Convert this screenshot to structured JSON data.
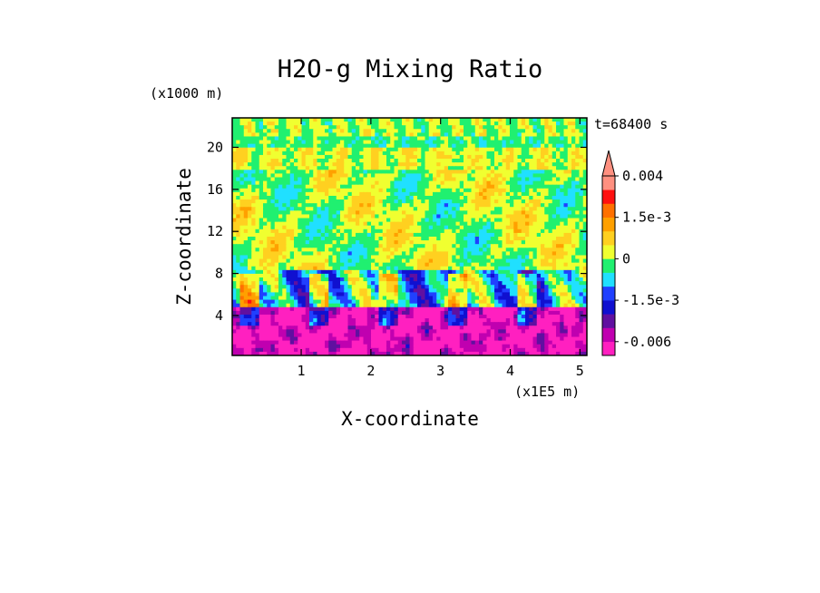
{
  "chart_data": {
    "type": "heatmap",
    "title": "H2O-g Mixing Ratio",
    "xlabel": "X-coordinate",
    "ylabel": "Z-coordinate",
    "x_unit": "(x1E5 m)",
    "y_unit": "(x1000 m)",
    "time_label": "t=68400 s",
    "xlim": [
      0.01,
      5.1
    ],
    "ylim": [
      0.2,
      22.8
    ],
    "x_ticks": [
      1,
      2,
      3,
      4,
      5
    ],
    "y_ticks": [
      4,
      8,
      12,
      16,
      20
    ],
    "x_tick_labels": [
      "1",
      "2",
      "3",
      "4",
      "5"
    ],
    "y_tick_labels": [
      "4",
      "8",
      "12",
      "16",
      "20"
    ],
    "colorbar": {
      "levels": [
        -0.009,
        -0.006,
        -0.003,
        -0.002,
        -0.0015,
        -0.001,
        -0.0005,
        0,
        0.0005,
        0.001,
        0.0015,
        0.002,
        0.003,
        0.004
      ],
      "colors": [
        "#ff20c0",
        "#c000b0",
        "#6010a0",
        "#1010d0",
        "#2040ff",
        "#20e0ff",
        "#20f070",
        "#f0ff30",
        "#ffd020",
        "#ffa000",
        "#ff7000",
        "#ff1010",
        "#ff9080"
      ],
      "labels": [
        "0.004",
        "1.5e-3",
        "0",
        "-1.5e-3",
        "-0.006"
      ],
      "label_values": [
        0.004,
        0.0015,
        0,
        -0.0015,
        -0.006
      ]
    },
    "field_description": [
      {
        "z_range": [
          0.2,
          5
        ],
        "value": -0.002
      },
      {
        "z_range": [
          5,
          8
        ],
        "value": -0.0005
      },
      {
        "z_range": [
          8,
          18
        ],
        "value": 0.0005
      },
      {
        "z_range": [
          18,
          22.8
        ],
        "value": 0.0003
      }
    ],
    "grid": false,
    "legend": "right"
  }
}
